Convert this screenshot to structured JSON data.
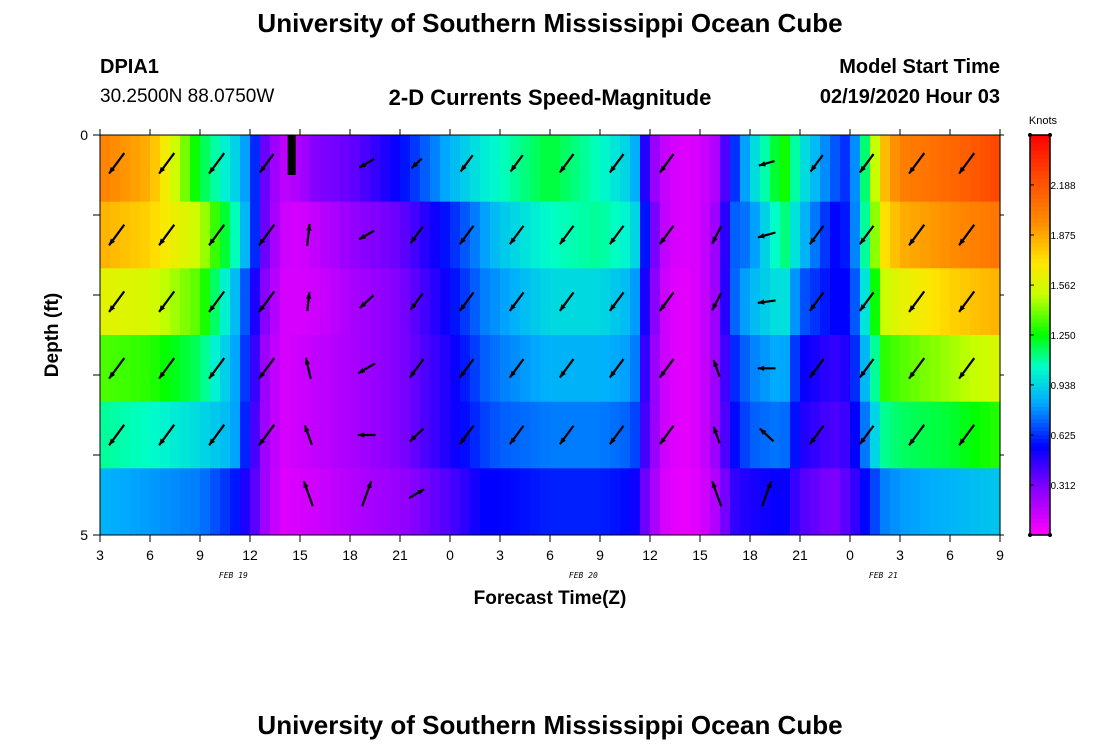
{
  "header": {
    "title": "University of Southern Mississippi Ocean Cube",
    "station_id": "DPIA1",
    "coordinates": "30.2500N 88.0750W",
    "chart_title": "2-D Currents Speed-Magnitude",
    "model_start_label": "Model Start Time",
    "model_start_value": "02/19/2020 Hour 03"
  },
  "footer": {
    "title": "University of Southern Mississippi Ocean Cube"
  },
  "chart_data": {
    "type": "heatmap",
    "title": "2-D Currents Speed-Magnitude",
    "xlabel": "Forecast Time(Z)",
    "ylabel": "Depth (ft)",
    "x_tick_labels": [
      "3",
      "6",
      "9",
      "12",
      "15",
      "18",
      "21",
      "0",
      "3",
      "6",
      "9",
      "12",
      "15",
      "18",
      "21",
      "0",
      "3",
      "6",
      "9"
    ],
    "date_labels": [
      "FEB 19",
      "FEB 20",
      "FEB 21"
    ],
    "date_label_positions_hours": [
      11,
      32,
      50
    ],
    "y_tick_labels": [
      "0",
      "5"
    ],
    "ylim": [
      0,
      5
    ],
    "y_inverted": true,
    "x_start_hour": 3,
    "x_hour_span": 54,
    "colorbar": {
      "unit": "Knots",
      "ticks": [
        "0.312",
        "0.625",
        "0.938",
        "1.250",
        "1.562",
        "1.875",
        "2.188"
      ],
      "vmin": 0,
      "vmax": 2.5
    },
    "depth_layers_ft": [
      0.25,
      1.25,
      2.25,
      3.25,
      4.25
    ],
    "speed_profiles_knots": {
      "hours": [
        3,
        6,
        9,
        11,
        12,
        13,
        14,
        15,
        16,
        18,
        21,
        24,
        26,
        27,
        30,
        33,
        35,
        36,
        37,
        38,
        39,
        40,
        41,
        42,
        44,
        45,
        47,
        48,
        50,
        51,
        54,
        57
      ],
      "layers": [
        [
          2.0,
          1.85,
          1.2,
          0.95,
          0.75,
          0.3,
          0.15,
          0.2,
          0.3,
          0.35,
          0.55,
          0.85,
          1.0,
          1.05,
          1.2,
          1.05,
          0.9,
          0.3,
          0.12,
          0.08,
          0.1,
          0.2,
          0.6,
          0.9,
          1.3,
          1.0,
          0.7,
          0.6,
          1.8,
          2.0,
          2.1,
          2.25
        ],
        [
          1.85,
          1.75,
          1.5,
          1.1,
          0.75,
          0.3,
          0.12,
          0.1,
          0.15,
          0.25,
          0.35,
          0.6,
          0.8,
          0.9,
          1.05,
          1.1,
          1.0,
          0.4,
          0.12,
          0.08,
          0.1,
          0.25,
          0.7,
          0.75,
          1.15,
          0.9,
          0.55,
          0.6,
          1.7,
          1.85,
          1.95,
          2.05
        ],
        [
          1.6,
          1.55,
          1.35,
          0.9,
          0.6,
          0.25,
          0.1,
          0.1,
          0.12,
          0.2,
          0.3,
          0.55,
          0.75,
          0.8,
          0.95,
          0.95,
          0.85,
          0.35,
          0.1,
          0.06,
          0.1,
          0.25,
          0.7,
          0.85,
          1.0,
          0.7,
          0.55,
          0.55,
          1.5,
          1.6,
          1.75,
          1.85
        ],
        [
          1.35,
          1.3,
          1.15,
          0.85,
          0.55,
          0.2,
          0.1,
          0.12,
          0.15,
          0.2,
          0.3,
          0.5,
          0.7,
          0.75,
          0.85,
          0.85,
          0.8,
          0.3,
          0.1,
          0.06,
          0.1,
          0.25,
          0.6,
          0.75,
          0.85,
          0.55,
          0.45,
          0.5,
          1.3,
          1.35,
          1.45,
          1.55
        ],
        [
          1.1,
          1.05,
          0.95,
          0.85,
          0.5,
          0.2,
          0.1,
          0.12,
          0.15,
          0.2,
          0.3,
          0.5,
          0.65,
          0.7,
          0.75,
          0.75,
          0.7,
          0.3,
          0.1,
          0.06,
          0.1,
          0.25,
          0.55,
          0.7,
          0.75,
          0.5,
          0.4,
          0.45,
          1.1,
          1.15,
          1.2,
          1.3
        ]
      ],
      "bottom_layer": [
        0.85,
        0.8,
        0.75,
        0.6,
        0.45,
        0.2,
        0.08,
        0.1,
        0.12,
        0.18,
        0.25,
        0.4,
        0.55,
        0.55,
        0.6,
        0.6,
        0.55,
        0.25,
        0.08,
        0.05,
        0.08,
        0.2,
        0.45,
        0.5,
        0.55,
        0.4,
        0.3,
        0.4,
        0.75,
        0.8,
        0.85,
        0.9
      ]
    },
    "current_vectors": {
      "hours": [
        4,
        7,
        10,
        13,
        15.5,
        19,
        22,
        25,
        28,
        31,
        34,
        37,
        40,
        43,
        46,
        49,
        52,
        55
      ],
      "layers": [
        [
          [
            140,
            1
          ],
          [
            140,
            1
          ],
          [
            140,
            1
          ],
          [
            140,
            0.9
          ],
          [
            null,
            0
          ],
          [
            160,
            0.8
          ],
          [
            150,
            0.6
          ],
          [
            140,
            0.8
          ],
          [
            140,
            0.8
          ],
          [
            140,
            0.9
          ],
          [
            140,
            0.9
          ],
          [
            140,
            0.9
          ],
          [
            null,
            0
          ],
          [
            170,
            0.8
          ],
          [
            140,
            0.8
          ],
          [
            140,
            0.9
          ],
          [
            140,
            1
          ],
          [
            140,
            1
          ]
        ],
        [
          [
            140,
            1
          ],
          [
            140,
            1
          ],
          [
            140,
            1
          ],
          [
            140,
            1
          ],
          [
            -80,
            0.7
          ],
          [
            160,
            0.8
          ],
          [
            140,
            0.8
          ],
          [
            140,
            0.9
          ],
          [
            140,
            0.9
          ],
          [
            140,
            0.9
          ],
          [
            140,
            0.9
          ],
          [
            140,
            0.9
          ],
          [
            130,
            0.7
          ],
          [
            170,
            0.9
          ],
          [
            140,
            0.9
          ],
          [
            140,
            0.9
          ],
          [
            140,
            1
          ],
          [
            140,
            1
          ]
        ],
        [
          [
            140,
            1
          ],
          [
            140,
            1
          ],
          [
            140,
            1
          ],
          [
            140,
            1
          ],
          [
            -80,
            0.6
          ],
          [
            150,
            0.8
          ],
          [
            140,
            0.8
          ],
          [
            140,
            0.9
          ],
          [
            140,
            0.9
          ],
          [
            140,
            0.9
          ],
          [
            140,
            0.9
          ],
          [
            140,
            0.9
          ],
          [
            130,
            0.7
          ],
          [
            175,
            0.9
          ],
          [
            140,
            0.9
          ],
          [
            140,
            0.9
          ],
          [
            140,
            1
          ],
          [
            140,
            1
          ]
        ],
        [
          [
            140,
            1
          ],
          [
            140,
            1
          ],
          [
            140,
            1
          ],
          [
            140,
            1
          ],
          [
            -110,
            0.7
          ],
          [
            160,
            0.9
          ],
          [
            140,
            0.9
          ],
          [
            140,
            0.9
          ],
          [
            140,
            0.9
          ],
          [
            140,
            0.9
          ],
          [
            140,
            0.9
          ],
          [
            140,
            0.9
          ],
          [
            -120,
            0.6
          ],
          [
            180,
            0.9
          ],
          [
            140,
            0.9
          ],
          [
            140,
            0.9
          ],
          [
            140,
            1
          ],
          [
            140,
            1
          ]
        ],
        [
          [
            140,
            1
          ],
          [
            140,
            1
          ],
          [
            140,
            1
          ],
          [
            140,
            1
          ],
          [
            -120,
            0.7
          ],
          [
            180,
            0.9
          ],
          [
            150,
            0.8
          ],
          [
            140,
            0.9
          ],
          [
            140,
            0.9
          ],
          [
            140,
            0.9
          ],
          [
            140,
            0.9
          ],
          [
            140,
            0.9
          ],
          [
            -120,
            0.6
          ],
          [
            -150,
            0.8
          ],
          [
            140,
            0.9
          ],
          [
            140,
            0.9
          ],
          [
            140,
            1
          ],
          [
            140,
            1
          ]
        ],
        [
          [
            null,
            0
          ],
          [
            null,
            0
          ],
          [
            null,
            0
          ],
          [
            null,
            0
          ],
          [
            -120,
            0.9
          ],
          [
            -60,
            0.9
          ],
          [
            -20,
            0.8
          ],
          [
            null,
            0
          ],
          [
            null,
            0
          ],
          [
            null,
            0
          ],
          [
            null,
            0
          ],
          [
            null,
            0
          ],
          [
            -120,
            0.9
          ],
          [
            -60,
            0.9
          ],
          [
            null,
            0
          ],
          [
            null,
            0
          ],
          [
            null,
            0
          ],
          [
            null,
            0
          ]
        ]
      ]
    },
    "land_marker_hour": 14.5
  }
}
